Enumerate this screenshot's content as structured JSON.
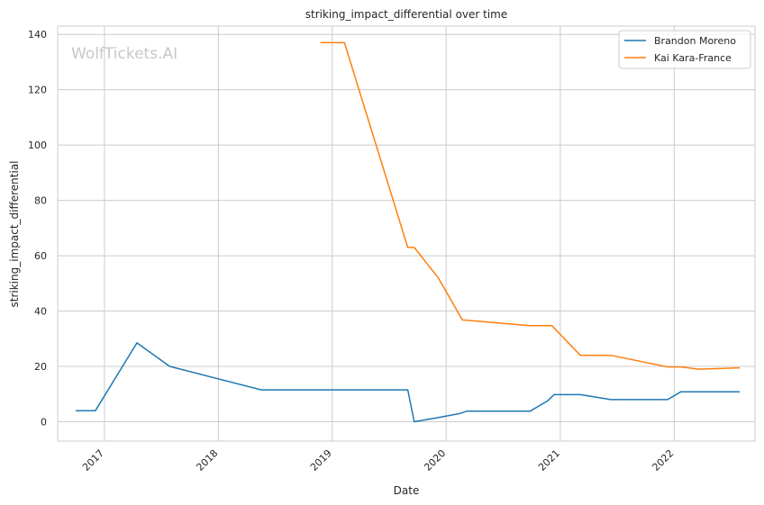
{
  "chart_data": {
    "type": "line",
    "title": "striking_impact_differential over time",
    "xlabel": "Date",
    "ylabel": "striking_impact_differential",
    "watermark": "WolfTickets.AI",
    "x_ticks": [
      "2017",
      "2018",
      "2019",
      "2020",
      "2021",
      "2022"
    ],
    "y_ticks": [
      "0",
      "20",
      "40",
      "60",
      "80",
      "100",
      "120",
      "140"
    ],
    "xlim": [
      "2016-08-04",
      "2022-09-17"
    ],
    "ylim": [
      -7,
      143
    ],
    "grid": true,
    "legend_position": "top-right",
    "series": [
      {
        "name": "Brandon Moreno",
        "color": "#1f77b4",
        "points": [
          {
            "x": "2016-10-01",
            "y": 4.0
          },
          {
            "x": "2016-12-03",
            "y": 4.0
          },
          {
            "x": "2017-04-15",
            "y": 28.5
          },
          {
            "x": "2017-07-29",
            "y": 20.0
          },
          {
            "x": "2018-05-19",
            "y": 11.5
          },
          {
            "x": "2019-08-31",
            "y": 11.5
          },
          {
            "x": "2019-09-21",
            "y": 0.0
          },
          {
            "x": "2019-12-07",
            "y": 1.5
          },
          {
            "x": "2020-02-15",
            "y": 3.0
          },
          {
            "x": "2020-03-07",
            "y": 3.8
          },
          {
            "x": "2020-09-26",
            "y": 3.8
          },
          {
            "x": "2020-11-21",
            "y": 7.5
          },
          {
            "x": "2020-12-12",
            "y": 9.8
          },
          {
            "x": "2021-03-06",
            "y": 9.8
          },
          {
            "x": "2021-06-12",
            "y": 8.0
          },
          {
            "x": "2021-12-11",
            "y": 8.0
          },
          {
            "x": "2022-01-22",
            "y": 10.8
          },
          {
            "x": "2022-07-30",
            "y": 10.8
          }
        ]
      },
      {
        "name": "Kai Kara-France",
        "color": "#ff7f0e",
        "points": [
          {
            "x": "2018-11-24",
            "y": 137.0
          },
          {
            "x": "2019-02-09",
            "y": 137.0
          },
          {
            "x": "2019-08-31",
            "y": 63.0
          },
          {
            "x": "2019-09-21",
            "y": 63.0
          },
          {
            "x": "2019-12-07",
            "y": 52.0
          },
          {
            "x": "2020-02-22",
            "y": 36.8
          },
          {
            "x": "2020-09-26",
            "y": 34.7
          },
          {
            "x": "2020-12-05",
            "y": 34.7
          },
          {
            "x": "2021-03-06",
            "y": 24.0
          },
          {
            "x": "2021-06-12",
            "y": 24.0
          },
          {
            "x": "2021-12-11",
            "y": 19.8
          },
          {
            "x": "2022-01-22",
            "y": 19.8
          },
          {
            "x": "2022-03-19",
            "y": 19.0
          },
          {
            "x": "2022-07-30",
            "y": 19.5
          }
        ]
      }
    ]
  }
}
